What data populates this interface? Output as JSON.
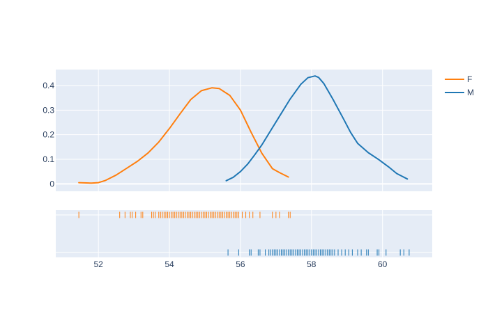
{
  "chart_data": {
    "type": "line",
    "title": "",
    "xlabel": "",
    "ylabel": "",
    "xlim": [
      50.8,
      61.4
    ],
    "ylim": [
      -0.03,
      0.465
    ],
    "x_ticks": [
      52,
      54,
      56,
      58,
      60
    ],
    "y_ticks": [
      0,
      0.1,
      0.2,
      0.3,
      0.4
    ],
    "y_tick_labels": [
      "0",
      "0.1",
      "0.2",
      "0.3",
      "0.4"
    ],
    "grid": true,
    "legend_position": "top-right",
    "series": [
      {
        "name": "F",
        "color": "#ff7f0e",
        "x": [
          51.45,
          51.8,
          52.0,
          52.2,
          52.5,
          52.8,
          53.1,
          53.4,
          53.7,
          54.0,
          54.3,
          54.6,
          54.9,
          55.2,
          55.4,
          55.7,
          56.0,
          56.3,
          56.6,
          56.9,
          57.1,
          57.35
        ],
        "values": [
          0.005,
          0.003,
          0.005,
          0.014,
          0.036,
          0.064,
          0.092,
          0.126,
          0.17,
          0.225,
          0.285,
          0.343,
          0.379,
          0.391,
          0.388,
          0.36,
          0.3,
          0.21,
          0.125,
          0.062,
          0.046,
          0.028
        ]
      },
      {
        "name": "M",
        "color": "#1f77b4",
        "x": [
          55.6,
          55.8,
          56.0,
          56.2,
          56.4,
          56.6,
          56.8,
          57.1,
          57.4,
          57.7,
          57.9,
          58.1,
          58.2,
          58.35,
          58.6,
          58.9,
          59.1,
          59.3,
          59.6,
          59.9,
          60.2,
          60.4,
          60.7
        ],
        "values": [
          0.013,
          0.027,
          0.05,
          0.08,
          0.118,
          0.158,
          0.205,
          0.275,
          0.345,
          0.405,
          0.432,
          0.439,
          0.433,
          0.408,
          0.345,
          0.265,
          0.21,
          0.165,
          0.127,
          0.098,
          0.066,
          0.042,
          0.02
        ]
      }
    ],
    "rug": [
      {
        "name": "F",
        "color": "#ff7f0e",
        "values": [
          51.45,
          52.6,
          52.75,
          52.9,
          52.95,
          53.05,
          53.2,
          53.25,
          53.5,
          53.55,
          53.6,
          53.7,
          53.75,
          53.8,
          53.85,
          53.9,
          53.95,
          54.0,
          54.05,
          54.1,
          54.15,
          54.2,
          54.25,
          54.3,
          54.35,
          54.4,
          54.45,
          54.5,
          54.55,
          54.6,
          54.65,
          54.7,
          54.75,
          54.8,
          54.85,
          54.9,
          54.95,
          55.0,
          55.05,
          55.1,
          55.15,
          55.2,
          55.25,
          55.3,
          55.35,
          55.4,
          55.45,
          55.5,
          55.55,
          55.6,
          55.65,
          55.7,
          55.75,
          55.8,
          55.85,
          55.9,
          55.95,
          56.05,
          56.15,
          56.25,
          56.35,
          56.55,
          56.9,
          57.0,
          57.1,
          57.35,
          57.4
        ]
      },
      {
        "name": "M",
        "color": "#1f77b4",
        "values": [
          55.65,
          55.95,
          56.25,
          56.3,
          56.5,
          56.55,
          56.7,
          56.8,
          56.85,
          56.9,
          56.95,
          57.0,
          57.05,
          57.1,
          57.15,
          57.2,
          57.25,
          57.3,
          57.35,
          57.4,
          57.45,
          57.5,
          57.55,
          57.6,
          57.65,
          57.7,
          57.75,
          57.8,
          57.85,
          57.9,
          57.95,
          58.0,
          58.05,
          58.1,
          58.15,
          58.2,
          58.25,
          58.3,
          58.35,
          58.4,
          58.45,
          58.5,
          58.55,
          58.6,
          58.65,
          58.75,
          58.85,
          58.95,
          59.05,
          59.15,
          59.3,
          59.4,
          59.55,
          59.6,
          59.85,
          59.9,
          60.1,
          60.5,
          60.6,
          60.75
        ]
      }
    ]
  }
}
